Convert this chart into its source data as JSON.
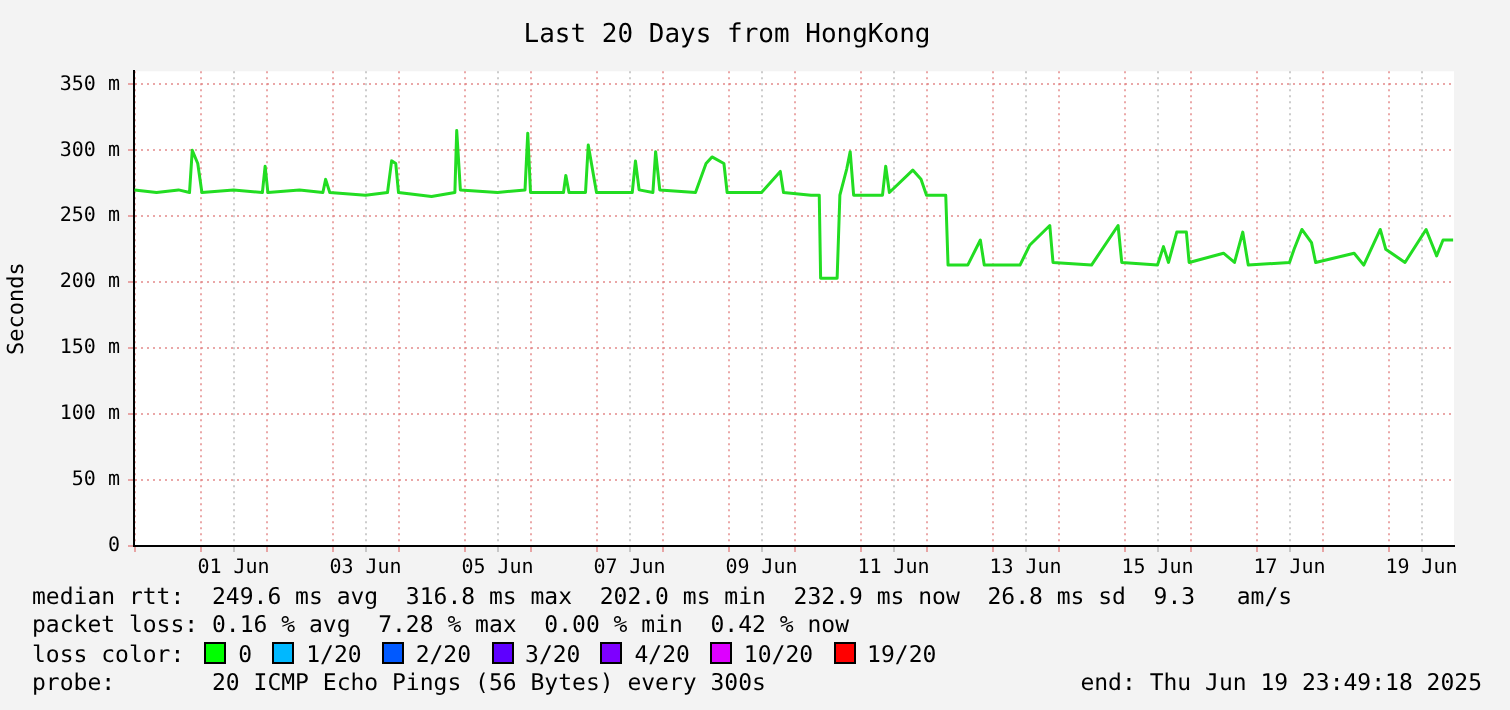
{
  "chart_data": {
    "type": "line",
    "title": "Last 20 Days from HongKong",
    "ylabel": "Seconds",
    "x": [
      "2025-05-31T00:00",
      "2025-05-31T08:00",
      "2025-05-31T16:00",
      "2025-05-31T20:00",
      "2025-05-31T21:00",
      "2025-05-31T23:00",
      "2025-06-01T00:30",
      "2025-06-01T12:00",
      "2025-06-01T22:30",
      "2025-06-01T23:30",
      "2025-06-02T00:30",
      "2025-06-02T12:00",
      "2025-06-02T20:30",
      "2025-06-02T21:30",
      "2025-06-02T23:00",
      "2025-06-03T12:00",
      "2025-06-03T20:00",
      "2025-06-03T21:30",
      "2025-06-03T23:00",
      "2025-06-04T00:00",
      "2025-06-04T12:00",
      "2025-06-04T20:30",
      "2025-06-04T21:10",
      "2025-06-04T22:30",
      "2025-06-05T12:00",
      "2025-06-05T22:00",
      "2025-06-05T23:00",
      "2025-06-06T00:00",
      "2025-06-06T12:00",
      "2025-06-06T12:50",
      "2025-06-06T14:00",
      "2025-06-06T20:00",
      "2025-06-06T21:00",
      "2025-06-06T23:00",
      "2025-06-07T00:00",
      "2025-06-07T13:00",
      "2025-06-07T14:10",
      "2025-06-07T15:30",
      "2025-06-07T20:30",
      "2025-06-07T21:30",
      "2025-06-07T23:00",
      "2025-06-08T12:00",
      "2025-06-08T15:50",
      "2025-06-08T18:00",
      "2025-06-08T22:20",
      "2025-06-08T23:30",
      "2025-06-09T12:00",
      "2025-06-09T18:50",
      "2025-06-09T20:00",
      "2025-06-10T06:00",
      "2025-06-10T09:00",
      "2025-06-10T09:30",
      "2025-06-10T15:30",
      "2025-06-10T16:30",
      "2025-06-10T19:00",
      "2025-06-10T20:15",
      "2025-06-10T21:30",
      "2025-06-11T08:00",
      "2025-06-11T09:10",
      "2025-06-11T10:30",
      "2025-06-11T19:00",
      "2025-06-11T22:00",
      "2025-06-12T00:00",
      "2025-06-12T07:00",
      "2025-06-12T07:50",
      "2025-06-12T15:00",
      "2025-06-12T19:35",
      "2025-06-12T21:00",
      "2025-06-13T10:00",
      "2025-06-13T13:30",
      "2025-06-13T20:50",
      "2025-06-13T22:00",
      "2025-06-14T12:00",
      "2025-06-14T21:40",
      "2025-06-14T23:00",
      "2025-06-15T12:00",
      "2025-06-15T14:10",
      "2025-06-15T16:00",
      "2025-06-15T19:00",
      "2025-06-15T22:30",
      "2025-06-15T23:30",
      "2025-06-16T12:00",
      "2025-06-16T16:00",
      "2025-06-16T19:00",
      "2025-06-16T21:00",
      "2025-06-17T12:00",
      "2025-06-17T13:40",
      "2025-06-17T16:30",
      "2025-06-17T20:00",
      "2025-06-17T21:30",
      "2025-06-18T11:30",
      "2025-06-18T15:00",
      "2025-06-18T21:00",
      "2025-06-18T23:00",
      "2025-06-19T06:00",
      "2025-06-19T13:40",
      "2025-06-19T17:30",
      "2025-06-19T19:50",
      "2025-06-19T23:30"
    ],
    "series": [
      {
        "color": "#22dd22",
        "values": [
          270,
          268,
          270,
          268,
          300,
          290,
          268,
          270,
          268,
          288,
          268,
          270,
          268,
          278,
          268,
          266,
          268,
          292,
          290,
          268,
          265,
          268,
          315,
          270,
          268,
          270,
          313,
          268,
          268,
          281,
          268,
          268,
          304,
          280,
          268,
          268,
          292,
          270,
          268,
          299,
          270,
          268,
          290,
          295,
          290,
          268,
          268,
          284,
          268,
          266,
          266,
          203,
          203,
          266,
          286,
          299,
          266,
          266,
          288,
          268,
          285,
          278,
          266,
          266,
          213,
          213,
          232,
          213,
          213,
          228,
          243,
          215,
          213,
          243,
          215,
          213,
          227,
          215,
          238,
          238,
          215,
          222,
          215,
          238,
          213,
          215,
          225,
          240,
          230,
          215,
          222,
          213,
          240,
          225,
          215,
          240,
          220,
          232,
          232
        ]
      }
    ],
    "xlim": [
      "2025-05-30T23:49",
      "2025-06-19T23:49"
    ],
    "xticks": [
      {
        "value": "2025-05-31T00:00",
        "label": null
      },
      {
        "value": "2025-06-01T00:00",
        "label": null
      },
      {
        "value": "2025-06-01T12:00",
        "label": "01 Jun"
      },
      {
        "value": "2025-06-02T00:00",
        "label": null
      },
      {
        "value": "2025-06-03T00:00",
        "label": null
      },
      {
        "value": "2025-06-03T12:00",
        "label": "03 Jun"
      },
      {
        "value": "2025-06-04T00:00",
        "label": null
      },
      {
        "value": "2025-06-05T00:00",
        "label": null
      },
      {
        "value": "2025-06-05T12:00",
        "label": "05 Jun"
      },
      {
        "value": "2025-06-06T00:00",
        "label": null
      },
      {
        "value": "2025-06-07T00:00",
        "label": null
      },
      {
        "value": "2025-06-07T12:00",
        "label": "07 Jun"
      },
      {
        "value": "2025-06-08T00:00",
        "label": null
      },
      {
        "value": "2025-06-09T00:00",
        "label": null
      },
      {
        "value": "2025-06-09T12:00",
        "label": "09 Jun"
      },
      {
        "value": "2025-06-10T00:00",
        "label": null
      },
      {
        "value": "2025-06-11T00:00",
        "label": null
      },
      {
        "value": "2025-06-11T12:00",
        "label": "11 Jun"
      },
      {
        "value": "2025-06-12T00:00",
        "label": null
      },
      {
        "value": "2025-06-13T00:00",
        "label": null
      },
      {
        "value": "2025-06-13T12:00",
        "label": "13 Jun"
      },
      {
        "value": "2025-06-14T00:00",
        "label": null
      },
      {
        "value": "2025-06-15T00:00",
        "label": null
      },
      {
        "value": "2025-06-15T12:00",
        "label": "15 Jun"
      },
      {
        "value": "2025-06-16T00:00",
        "label": null
      },
      {
        "value": "2025-06-17T00:00",
        "label": null
      },
      {
        "value": "2025-06-17T12:00",
        "label": "17 Jun"
      },
      {
        "value": "2025-06-18T00:00",
        "label": null
      },
      {
        "value": "2025-06-19T00:00",
        "label": null
      },
      {
        "value": "2025-06-19T12:00",
        "label": "19 Jun"
      }
    ],
    "ylim": [
      0,
      360
    ],
    "yticks": [
      0,
      {
        "value": 50,
        "label": "50 m"
      },
      {
        "value": 100,
        "label": "100 m"
      },
      {
        "value": 150,
        "label": "150 m"
      },
      {
        "value": 200,
        "label": "200 m"
      },
      {
        "value": 250,
        "label": "250 m"
      },
      {
        "value": 300,
        "label": "300 m"
      },
      {
        "value": 350,
        "label": "350 m"
      }
    ],
    "grid": true,
    "annotations": [
      "median rtt:  249.6 ms avg  316.8 ms max  202.0 ms min  232.9 ms now  26.8 ms sd  9.3   am/s",
      "packet loss: 0.16 % avg  7.28 % max  0.00 % min  0.42 % now",
      "loss color:",
      "0",
      "1/20",
      "2/20",
      "3/20",
      "4/20",
      "10/20",
      "19/20",
      "probe:       20 ICMP Echo Pings (56 Bytes) every 300s",
      "end: Thu Jun 19 23:49:18 2025"
    ]
  }
}
